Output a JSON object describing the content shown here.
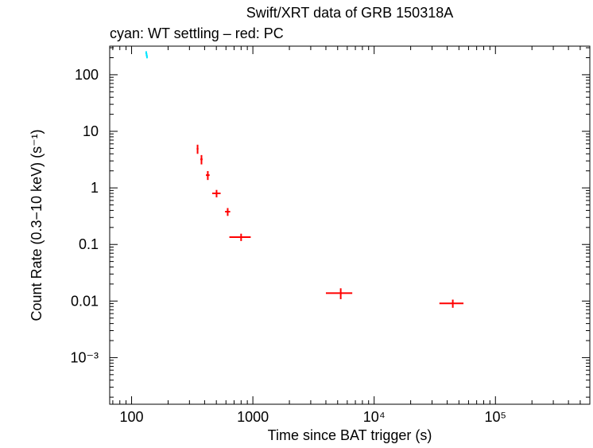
{
  "chart_data": {
    "type": "scatter",
    "title": "Swift/XRT data of GRB 150318A",
    "subtitle": "cyan: WT settling – red: PC",
    "x_label": "Time since BAT trigger (s)",
    "y_label": "Count Rate (0.3−10 keV) (s⁻¹)",
    "log_x": true,
    "log_y": true,
    "xlim": [
      66,
      600000
    ],
    "ylim": [
      0.00015,
      320
    ],
    "xticks": [
      100,
      1000,
      {
        "value": 10000,
        "label": "10⁴"
      },
      {
        "value": 100000,
        "label": "10⁵"
      }
    ],
    "yticks": [
      {
        "value": 0.001,
        "label": "10⁻³"
      },
      0.01,
      0.1,
      1,
      10,
      100
    ],
    "series": [
      {
        "name": "WT settling",
        "color": "#00e5ff",
        "x": [
          132,
          133,
          134
        ],
        "values": [
          245,
          225,
          208
        ],
        "xerr": [
          0.5,
          0.5,
          0.5
        ],
        "yerr": [
          15,
          14,
          13
        ]
      },
      {
        "name": "PC",
        "color": "#ff0000",
        "x": [
          350,
          377,
          425,
          502,
          620,
          800,
          5300,
          44500
        ],
        "values": [
          4.9,
          3.2,
          1.68,
          0.8,
          0.38,
          0.135,
          0.0138,
          0.0091
        ],
        "xerr": [
          6,
          8,
          15,
          40,
          30,
          160,
          1300,
          10000
        ],
        "yerr": [
          0.9,
          0.6,
          0.3,
          0.12,
          0.06,
          0.02,
          0.003,
          0.0015
        ]
      }
    ]
  }
}
